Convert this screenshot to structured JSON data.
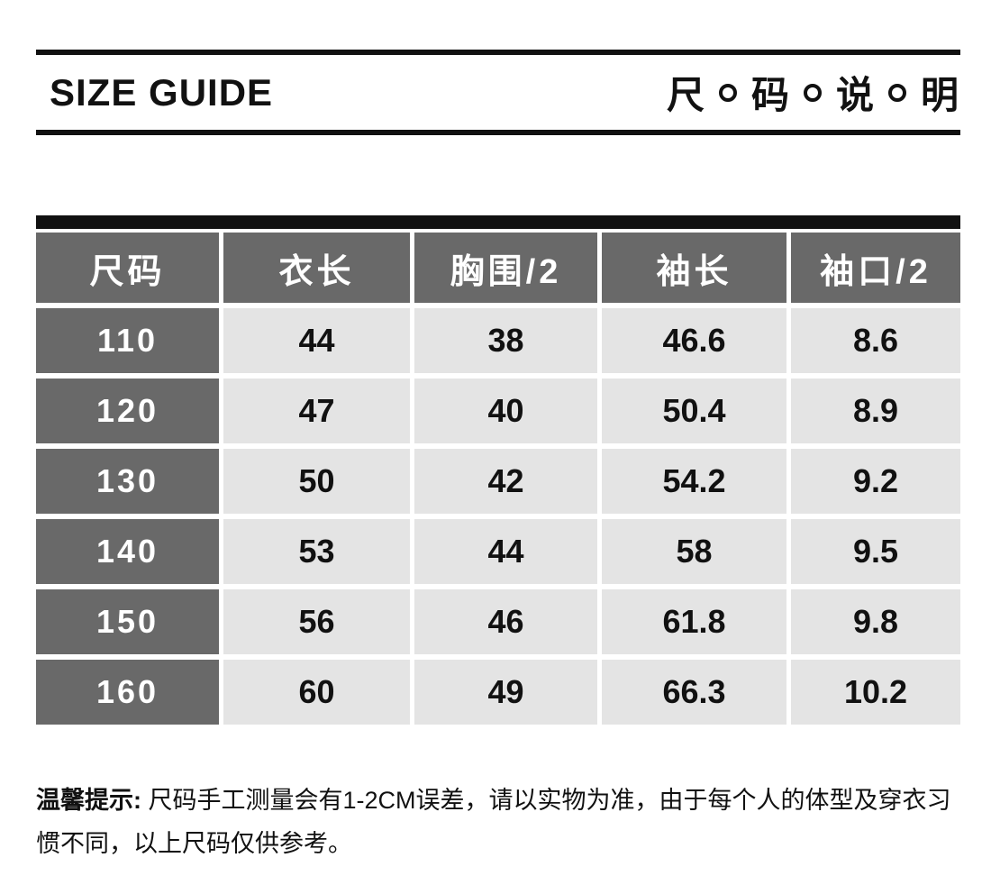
{
  "header": {
    "title_en": "SIZE GUIDE",
    "title_cn_chars": [
      "尺",
      "码",
      "说",
      "明"
    ]
  },
  "table": {
    "columns": [
      "尺码",
      "衣长",
      "胸围/2",
      "袖长",
      "袖口/2"
    ],
    "rows": [
      {
        "size": "110",
        "values": [
          "44",
          "38",
          "46.6",
          "8.6"
        ]
      },
      {
        "size": "120",
        "values": [
          "47",
          "40",
          "50.4",
          "8.9"
        ]
      },
      {
        "size": "130",
        "values": [
          "50",
          "42",
          "54.2",
          "9.2"
        ]
      },
      {
        "size": "140",
        "values": [
          "53",
          "44",
          "58",
          "9.5"
        ]
      },
      {
        "size": "150",
        "values": [
          "56",
          "46",
          "61.8",
          "9.8"
        ]
      },
      {
        "size": "160",
        "values": [
          "60",
          "49",
          "66.3",
          "10.2"
        ]
      }
    ]
  },
  "note": {
    "label": "温馨提示:",
    "text": " 尺码手工测量会有1-2CM误差，请以实物为准，由于每个人的体型及穿衣习惯不同，以上尺码仅供参考。"
  },
  "colors": {
    "black": "#111111",
    "dark_gray": "#696969",
    "light_gray": "#e4e4e4",
    "background": "#ffffff"
  }
}
